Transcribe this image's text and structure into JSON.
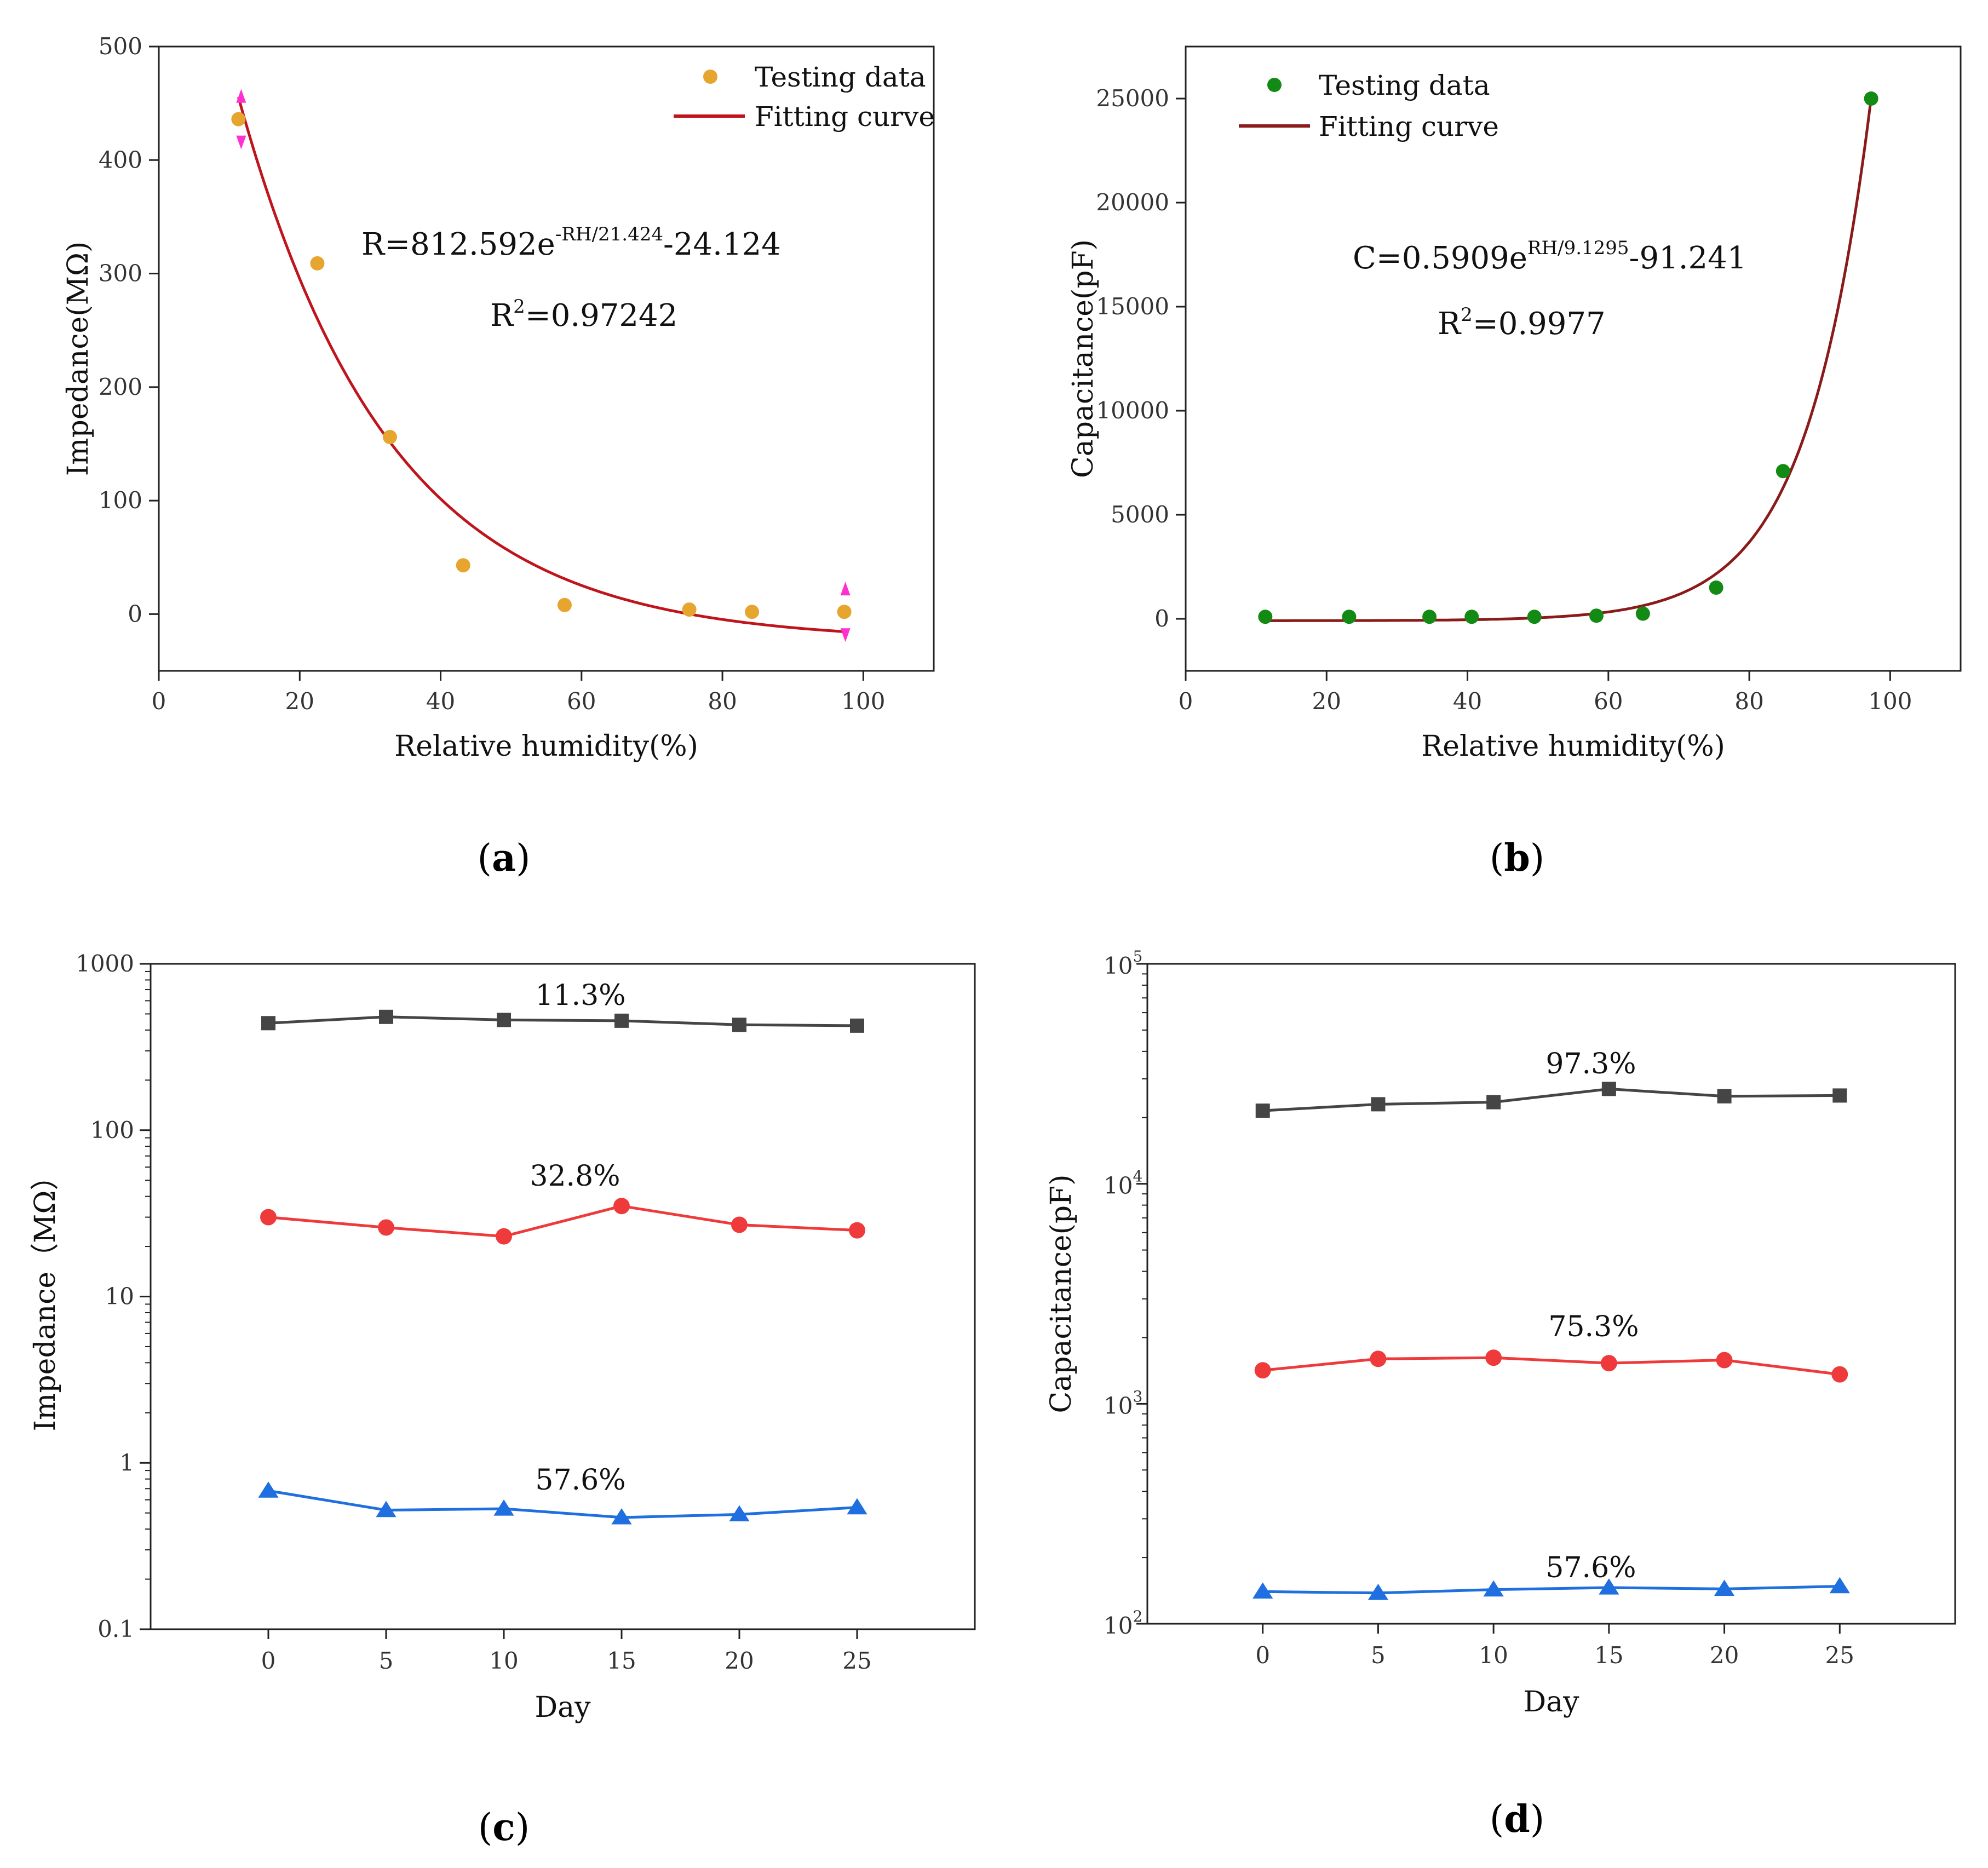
{
  "chart_data": [
    {
      "panel": "a",
      "type": "scatter",
      "title": "",
      "xlabel": "Relative humidity(%)",
      "ylabel": "Impedance(MΩ)",
      "xlim": [
        0,
        110
      ],
      "ylim": [
        -50,
        500
      ],
      "xticks": [
        0,
        20,
        40,
        60,
        80,
        100
      ],
      "yticks": [
        0,
        100,
        200,
        300,
        400,
        500
      ],
      "legend": {
        "position": "top-right",
        "entries": [
          "Testing data",
          "Fitting curve"
        ]
      },
      "points": {
        "name": "Testing data",
        "color": "#e6a52e",
        "x": [
          11.3,
          22.5,
          32.8,
          43.2,
          57.6,
          75.3,
          84.2,
          97.3
        ],
        "y": [
          436,
          309,
          156,
          43,
          8,
          4,
          2,
          2
        ]
      },
      "fit": {
        "name": "Fitting curve",
        "color": "#c0141c",
        "a": 812.592,
        "b": 21.424,
        "c": -24.124,
        "kind": "exp-decay",
        "x_range": [
          11.3,
          97.3
        ]
      },
      "equation": {
        "prefix": "R=812.592e",
        "sup": "-RH/21.424",
        "suffix": "-24.124"
      },
      "r2": {
        "base": "R",
        "sup": "2",
        "value": "=0.97242"
      },
      "sublabel": {
        "open": "(",
        "letter": "a",
        "close": ")"
      }
    },
    {
      "panel": "b",
      "type": "scatter",
      "title": "",
      "xlabel": "Relative humidity(%)",
      "ylabel": "Capacitance(pF)",
      "xlim": [
        0,
        110
      ],
      "ylim": [
        -2500,
        27500
      ],
      "xticks": [
        0,
        20,
        40,
        60,
        80,
        100
      ],
      "yticks": [
        0,
        5000,
        10000,
        15000,
        20000,
        25000
      ],
      "legend": {
        "position": "top-left",
        "entries": [
          "Testing data",
          "Fitting curve"
        ]
      },
      "points": {
        "name": "Testing data",
        "color": "#138a13",
        "x": [
          11.3,
          23.2,
          34.6,
          40.6,
          49.5,
          58.3,
          64.9,
          75.3,
          84.8,
          97.3
        ],
        "y": [
          100,
          100,
          100,
          100,
          100,
          150,
          250,
          1500,
          7100,
          25000
        ]
      },
      "fit": {
        "name": "Fitting curve",
        "color": "#8b1a1a",
        "a": 0.5909,
        "b": 9.1295,
        "c": -91.241,
        "kind": "exp-growth",
        "x_range": [
          11.3,
          97.3
        ]
      },
      "equation": {
        "prefix": "C=0.5909e",
        "sup": "RH/9.1295",
        "suffix": "-91.241"
      },
      "r2": {
        "base": "R",
        "sup": "2",
        "value": "=0.9977"
      },
      "sublabel": {
        "open": "(",
        "letter": "b",
        "close": ")"
      }
    },
    {
      "panel": "c",
      "type": "line",
      "title": "",
      "xlabel": "Day",
      "ylabel": "Impedance（MΩ）",
      "yscale": "log",
      "xlim": [
        -5,
        30
      ],
      "ylim": [
        0.1,
        1000
      ],
      "xticks": [
        0,
        5,
        10,
        15,
        20,
        25
      ],
      "ytick_labels": [
        "0.1",
        "1",
        "10",
        "100",
        "1000"
      ],
      "ytick_values": [
        0.1,
        1,
        10,
        100,
        1000
      ],
      "x": [
        0,
        5,
        10,
        15,
        20,
        25
      ],
      "series": [
        {
          "name": "11.3%",
          "color": "#454545",
          "marker": "square",
          "values": [
            440,
            480,
            460,
            455,
            430,
            425
          ]
        },
        {
          "name": "32.8%",
          "color": "#ee3a3a",
          "marker": "circle",
          "values": [
            30,
            26,
            23,
            35,
            27,
            25
          ]
        },
        {
          "name": "57.6%",
          "color": "#1f6fe0",
          "marker": "triangle",
          "values": [
            0.68,
            0.52,
            0.53,
            0.47,
            0.49,
            0.54
          ]
        }
      ],
      "sublabel": {
        "open": "(",
        "letter": "c",
        "close": ")"
      }
    },
    {
      "panel": "d",
      "type": "line",
      "title": "",
      "xlabel": "Day",
      "ylabel": "Capacitance(pF)",
      "yscale": "log",
      "xlim": [
        -5,
        30
      ],
      "ylim": [
        100,
        100000
      ],
      "xticks": [
        0,
        5,
        10,
        15,
        20,
        25
      ],
      "ytick_bases": [
        "10",
        "10",
        "10",
        "10"
      ],
      "ytick_exps": [
        "2",
        "3",
        "4",
        "5"
      ],
      "ytick_values": [
        100,
        1000,
        10000,
        100000
      ],
      "x": [
        0,
        5,
        10,
        15,
        20,
        25
      ],
      "series": [
        {
          "name": "97.3%",
          "color": "#454545",
          "marker": "square",
          "values": [
            21500,
            23000,
            23500,
            27000,
            25000,
            25200
          ]
        },
        {
          "name": "75.3%",
          "color": "#ee3a3a",
          "marker": "circle",
          "values": [
            1420,
            1600,
            1620,
            1530,
            1580,
            1360
          ]
        },
        {
          "name": "57.6%",
          "color": "#1f6fe0",
          "marker": "triangle",
          "values": [
            140,
            138,
            143,
            146,
            144,
            148
          ]
        }
      ],
      "sublabel": {
        "open": "(",
        "letter": "d",
        "close": ")"
      }
    }
  ]
}
